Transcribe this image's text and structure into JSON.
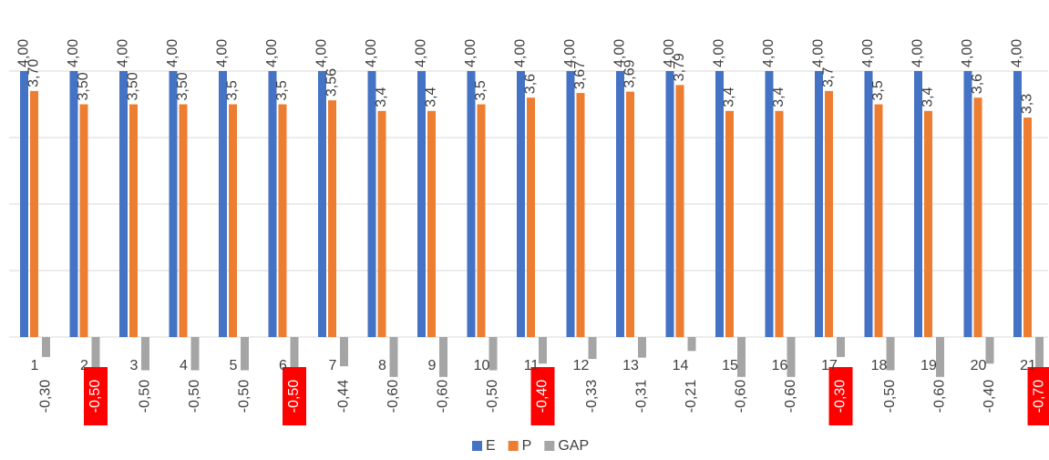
{
  "chart_data": {
    "type": "bar",
    "categories": [
      "1",
      "2",
      "3",
      "4",
      "5",
      "6",
      "7",
      "8",
      "9",
      "10",
      "11",
      "12",
      "13",
      "14",
      "15",
      "16",
      "17",
      "18",
      "19",
      "20",
      "21"
    ],
    "series": [
      {
        "name": "E",
        "color": "#4472c4",
        "values": [
          4,
          4,
          4,
          4,
          4,
          4,
          4,
          4,
          4,
          4,
          4,
          4,
          4,
          4,
          4,
          4,
          4,
          4,
          4,
          4,
          4
        ],
        "value_labels": [
          "4,00",
          "4,00",
          "4,00",
          "4,00",
          "4,00",
          "4,00",
          "4,00",
          "4,00",
          "4,00",
          "4,00",
          "4,00",
          "4,00",
          "4,00",
          "4,00",
          "4,00",
          "4,00",
          "4,00",
          "4,00",
          "4,00",
          "4,00",
          "4,00"
        ]
      },
      {
        "name": "P",
        "color": "#ed7d31",
        "values": [
          3.7,
          3.5,
          3.5,
          3.5,
          3.5,
          3.5,
          3.56,
          3.4,
          3.4,
          3.5,
          3.6,
          3.67,
          3.69,
          3.79,
          3.4,
          3.4,
          3.7,
          3.5,
          3.4,
          3.6,
          3.3
        ],
        "value_labels": [
          "3,70",
          "3,50",
          "3,50",
          "3,50",
          "3,5",
          "3,5",
          "3,56",
          "3,4",
          "3,4",
          "3,5",
          "3,6",
          "3,67",
          "3,69",
          "3,79",
          "3,4",
          "3,4",
          "3,7",
          "3,5",
          "3,4",
          "3,6",
          "3,3"
        ]
      },
      {
        "name": "GAP",
        "color": "#a5a5a5",
        "values": [
          -0.3,
          -0.5,
          -0.5,
          -0.5,
          -0.5,
          -0.5,
          -0.44,
          -0.6,
          -0.6,
          -0.5,
          -0.4,
          -0.33,
          -0.31,
          -0.21,
          -0.6,
          -0.6,
          -0.3,
          -0.5,
          -0.6,
          -0.4,
          -0.7
        ],
        "value_labels": [
          "-0,30",
          "-0,50",
          "-0,50",
          "-0,50",
          "-0,50",
          "-0,50",
          "-0,44",
          "-0,60",
          "-0,60",
          "-0,50",
          "-0,40",
          "-0,33",
          "-0,31",
          "-0,21",
          "-0,60",
          "-0,60",
          "-0,30",
          "-0,50",
          "-0,60",
          "-0,40",
          "-0,70"
        ],
        "highlighted_labels": [
          1,
          5,
          10,
          16,
          20
        ],
        "highlight_color": "#ff0000"
      }
    ],
    "ylim": [
      -1,
      4
    ],
    "yticks": [
      0,
      1,
      2,
      3,
      4
    ],
    "grid": true,
    "legend": "bottom"
  }
}
